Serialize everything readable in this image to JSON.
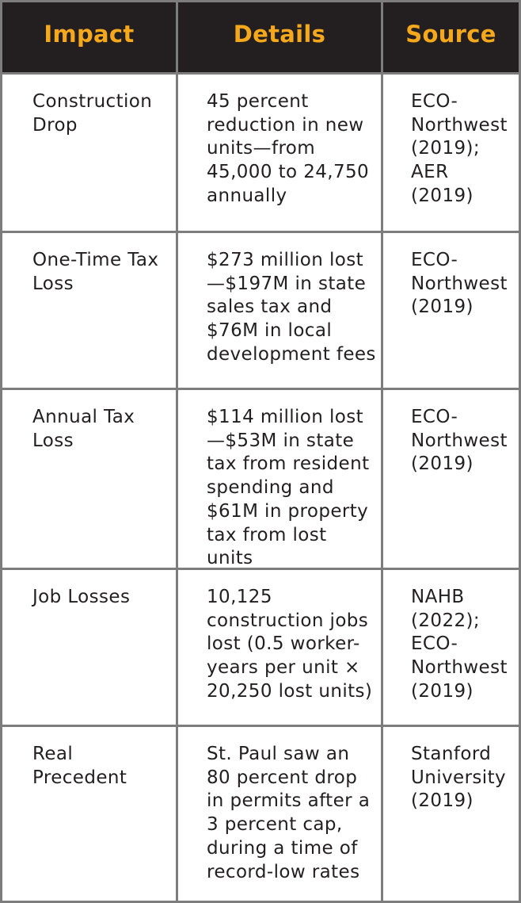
{
  "headers": {
    "impact": "Impact",
    "details": "Details",
    "source": "Source"
  },
  "rows": [
    {
      "impact": "Construction Drop",
      "details": "45 percent reduction in new units—from 45,000 to 24,750 annually",
      "source": "ECO-Northwest (2019); AER (2019)"
    },
    {
      "impact": "One-Time Tax Loss",
      "details": "$273 million lost—$197M in state sales tax and $76M in local development fees",
      "source": "ECO-Northwest (2019)"
    },
    {
      "impact": "Annual Tax Loss",
      "details": "$114 million lost—$53M in state tax from resident spending and $61M in property tax from lost units",
      "source": "ECO-Northwest (2019)"
    },
    {
      "impact": "Job Losses",
      "details": "10,125 construction jobs lost (0.5 worker-years per unit × 20,250 lost units)",
      "source": "NAHB (2022); ECO-Northwest (2019)"
    },
    {
      "impact": "Real Precedent",
      "details": "St. Paul saw an 80 percent drop in permits after a 3 percent cap, during a time of record-low rates",
      "source": "Stanford University (2019)"
    }
  ],
  "colors": {
    "header_bg": "#231f20",
    "header_text": "#f5a81c",
    "border": "#7d7d7d",
    "body_text": "#231f20"
  }
}
